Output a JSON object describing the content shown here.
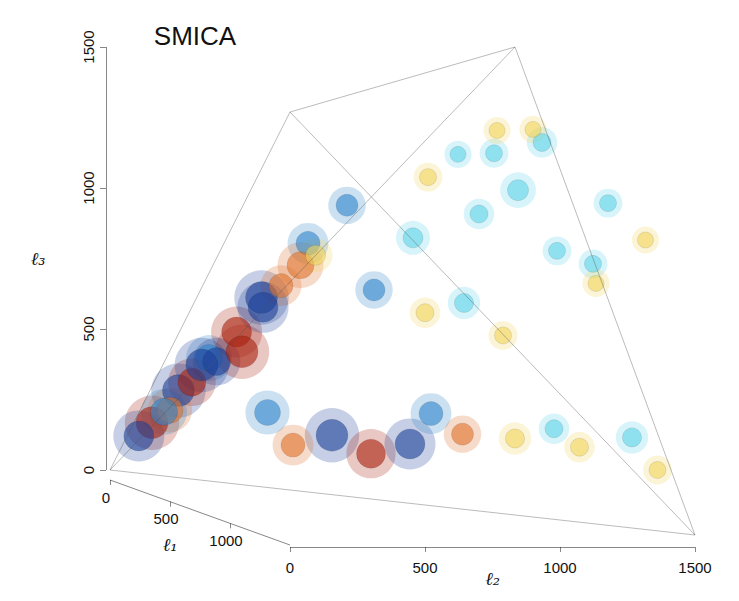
{
  "chart_data": {
    "type": "bispectrum3d",
    "title": "SMICA",
    "xlabel": "ℓ₁",
    "ylabel": "ℓ₂",
    "zlabel": "ℓ₃",
    "xlim": [
      0,
      1500
    ],
    "ylim": [
      0,
      1500
    ],
    "zlim": [
      0,
      1500
    ],
    "xticks": [
      0,
      500,
      1000
    ],
    "yticks": [
      0,
      500,
      1000,
      1500
    ],
    "zticks": [
      0,
      500,
      1000,
      1500
    ],
    "clim": [
      -2,
      2
    ],
    "points": {
      "l1": [
        80,
        120,
        150,
        200,
        250,
        300,
        100,
        200,
        150,
        300,
        350,
        400,
        250,
        120,
        180,
        60,
        50,
        90,
        500,
        600,
        700,
        800,
        650,
        900,
        400,
        300,
        1000,
        1100,
        1200,
        1300,
        500,
        600,
        700,
        800,
        400,
        900,
        600,
        1000,
        700,
        800,
        500,
        300,
        1100,
        900,
        400,
        600,
        200,
        1200
      ],
      "l2": [
        120,
        200,
        300,
        380,
        450,
        500,
        350,
        400,
        500,
        600,
        550,
        700,
        650,
        250,
        260,
        80,
        200,
        160,
        600,
        700,
        800,
        950,
        900,
        1100,
        500,
        450,
        1200,
        1250,
        1400,
        1450,
        900,
        1100,
        1200,
        1300,
        1000,
        1200,
        1300,
        1400,
        1000,
        1100,
        1200,
        1300,
        1300,
        1400,
        800,
        900,
        1200,
        1450
      ],
      "l3": [
        180,
        300,
        420,
        520,
        650,
        700,
        400,
        450,
        600,
        850,
        780,
        1000,
        800,
        330,
        400,
        130,
        220,
        220,
        200,
        150,
        200,
        250,
        300,
        250,
        150,
        250,
        300,
        250,
        300,
        200,
        900,
        1000,
        1100,
        900,
        1100,
        1300,
        1300,
        1100,
        700,
        600,
        1200,
        1250,
        900,
        800,
        700,
        650,
        1150,
        1000
      ],
      "values": [
        2,
        -2,
        -1.5,
        1.8,
        -2,
        1.2,
        -1.6,
        2,
        -1.8,
        -1.2,
        1.5,
        -1,
        0.8,
        1.6,
        -2,
        -1.8,
        1.4,
        -1.5,
        -2,
        1.7,
        -1.8,
        1,
        -1.2,
        0.7,
        1.2,
        -1.4,
        -0.6,
        0.6,
        -0.7,
        0.5,
        -0.8,
        -0.6,
        -0.9,
        -0.5,
        0.5,
        -0.6,
        0.4,
        -0.5,
        -0.7,
        0.5,
        -0.5,
        0.4,
        -0.5,
        0.4,
        -1,
        0.6,
        -0.4,
        0.4
      ]
    }
  }
}
